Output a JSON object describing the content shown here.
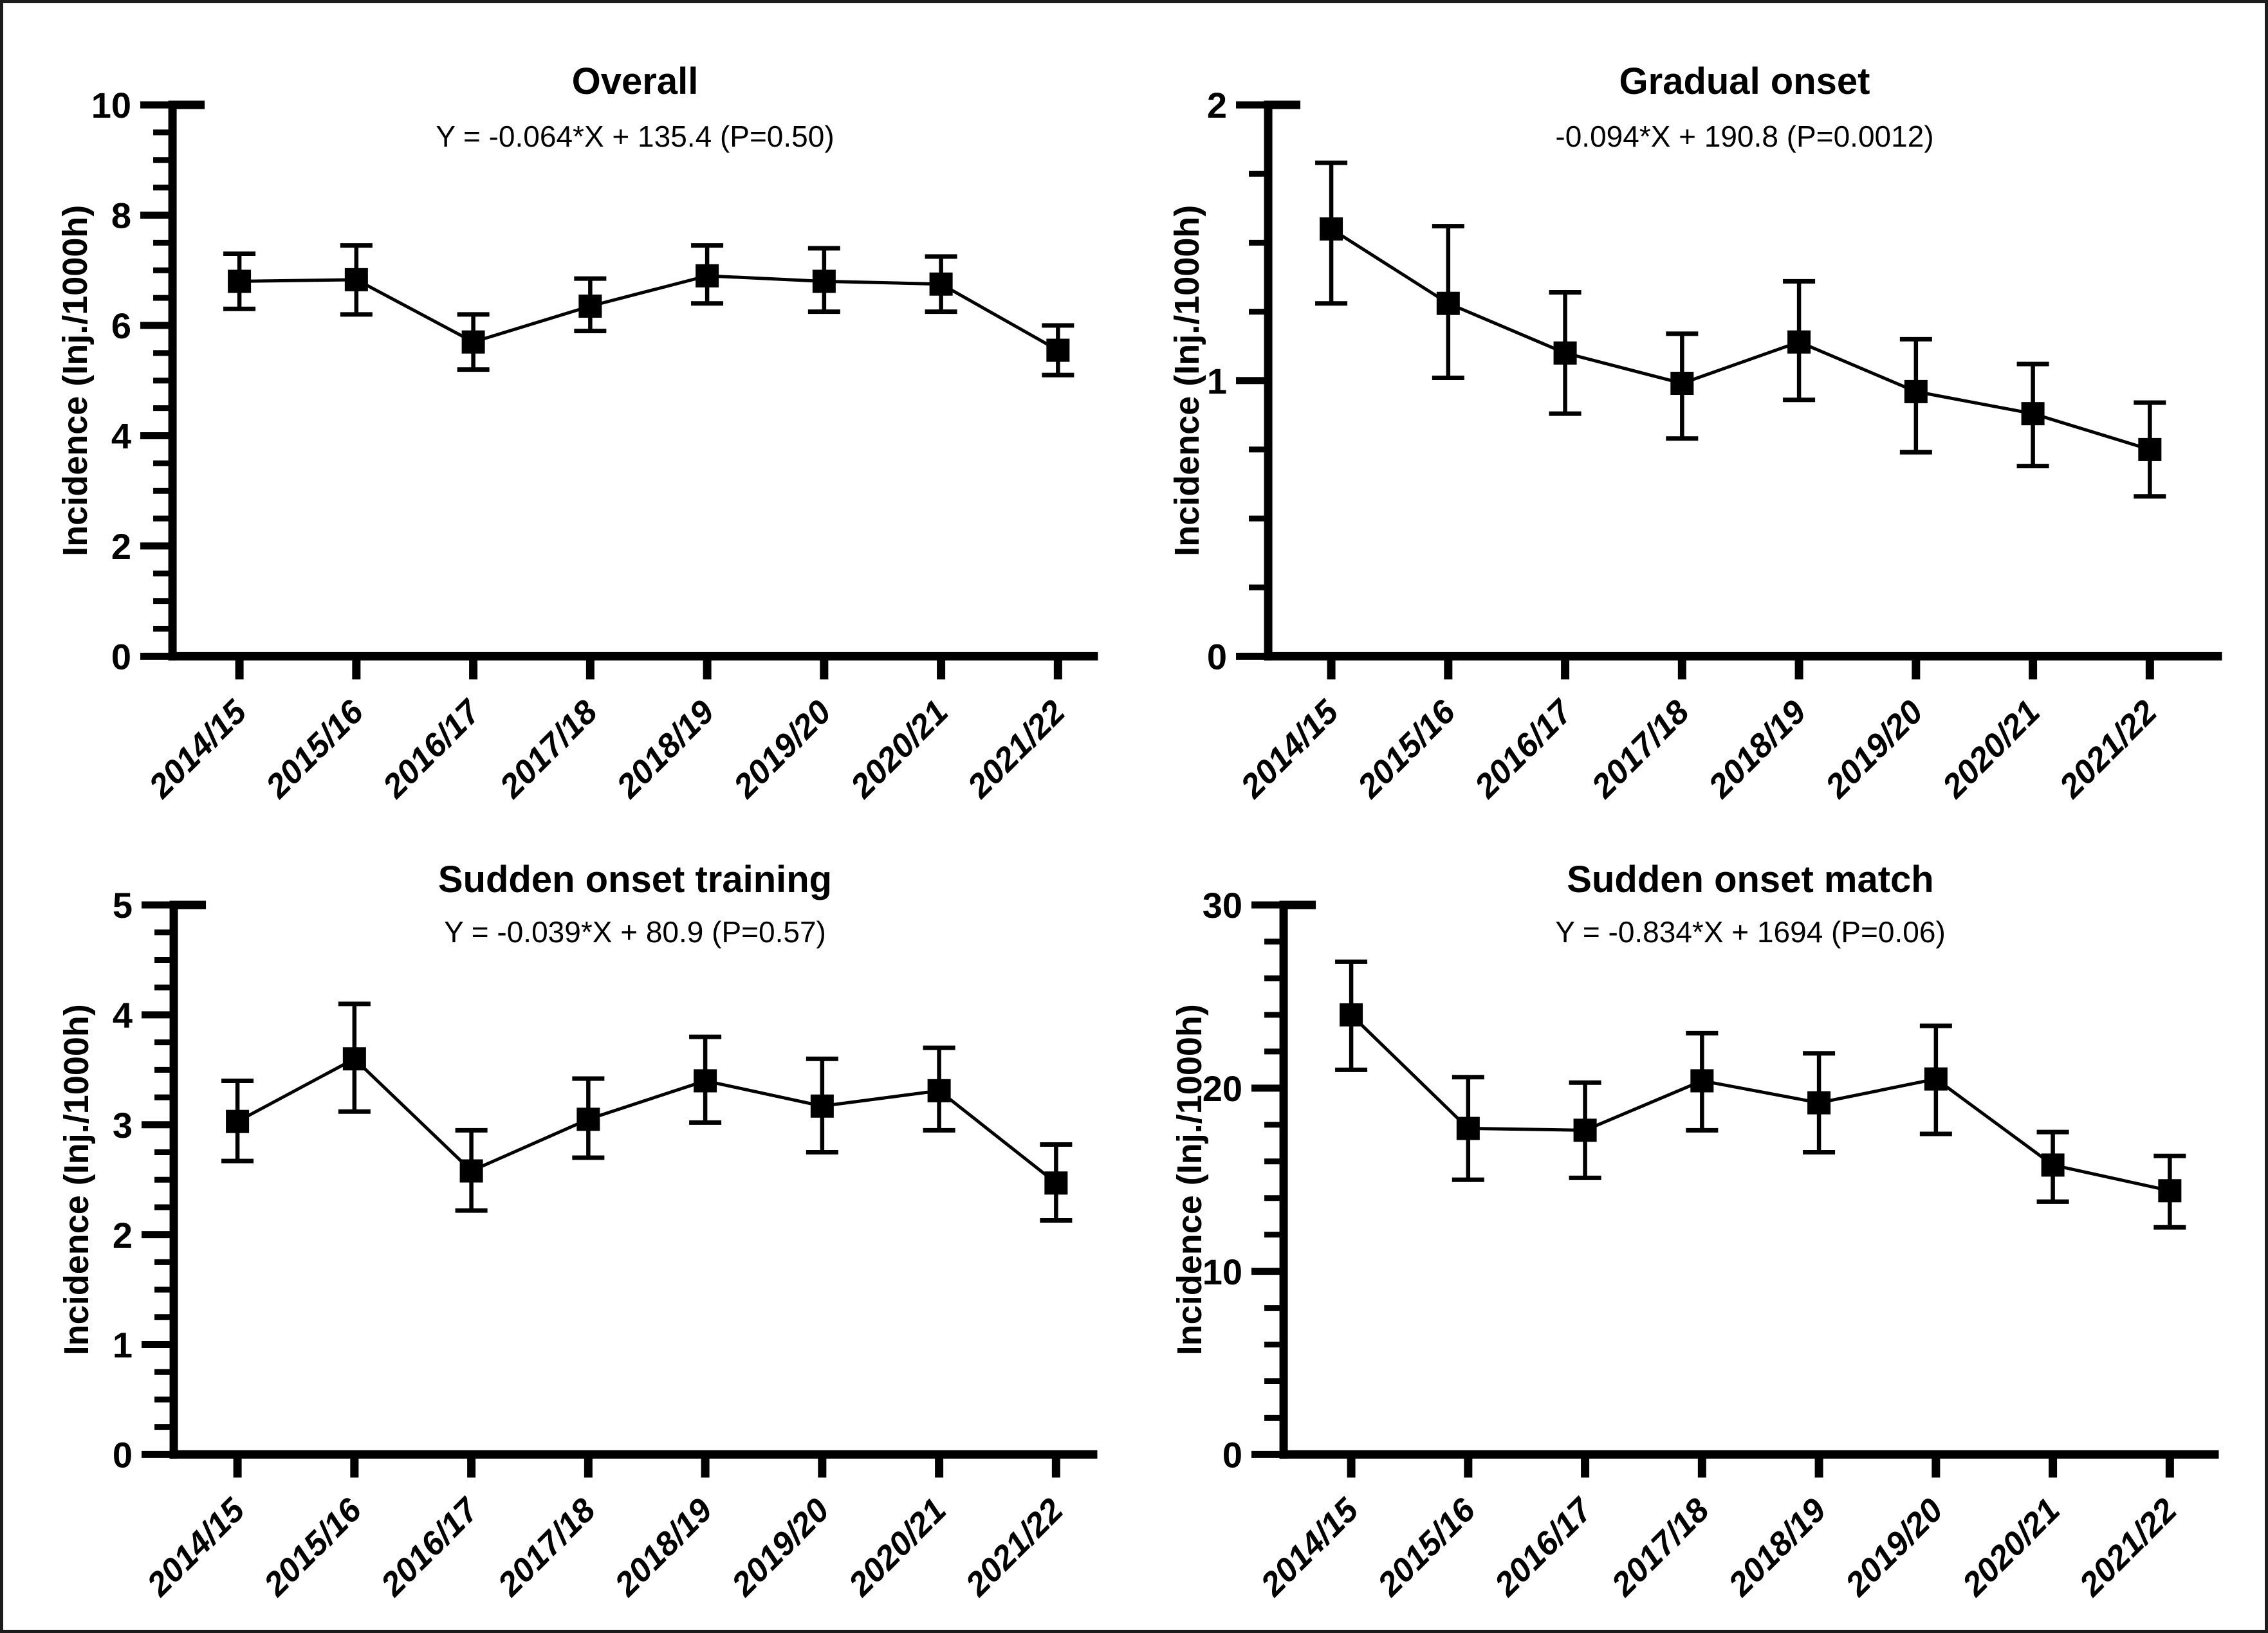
{
  "figure": {
    "background": "#ffffff",
    "border_color": "#1c1c1c",
    "ink_color": "#000000"
  },
  "chart_data": [
    {
      "type": "line",
      "title": "Overall",
      "equation": "Y = -0.064*X + 135.4 (P=0.50)",
      "ylabel": "Incidence (Inj./1000h)",
      "categories": [
        "2014/15",
        "2015/16",
        "2016/17",
        "2017/18",
        "2018/19",
        "2019/20",
        "2020/21",
        "2021/22"
      ],
      "values": [
        6.8,
        6.83,
        5.7,
        6.35,
        6.9,
        6.8,
        6.75,
        5.55
      ],
      "error_low": [
        6.3,
        6.2,
        5.2,
        5.9,
        6.4,
        6.25,
        6.25,
        5.1
      ],
      "error_high": [
        7.3,
        7.45,
        6.2,
        6.85,
        7.45,
        7.4,
        7.25,
        6.0
      ],
      "ylim": [
        0,
        10
      ],
      "y_major_step": 2,
      "y_minor_step": 0.5,
      "marker": "square",
      "error_bars": true,
      "grid": false,
      "legend": "none",
      "tick_label_rotation": -45,
      "color": "#000000"
    },
    {
      "type": "line",
      "title": "Gradual onset",
      "equation": "-0.094*X + 190.8 (P=0.0012)",
      "ylabel": "Incidence (Inj./1000h)",
      "categories": [
        "2014/15",
        "2015/16",
        "2016/17",
        "2017/18",
        "2018/19",
        "2019/20",
        "2020/21",
        "2021/22"
      ],
      "values": [
        1.55,
        1.28,
        1.1,
        0.99,
        1.14,
        0.96,
        0.88,
        0.75
      ],
      "error_low": [
        1.28,
        1.01,
        0.88,
        0.79,
        0.93,
        0.74,
        0.69,
        0.58
      ],
      "error_high": [
        1.79,
        1.56,
        1.32,
        1.17,
        1.36,
        1.15,
        1.06,
        0.92
      ],
      "ylim": [
        0,
        2
      ],
      "y_major_step": 1,
      "y_minor_step": 0.25,
      "marker": "square",
      "error_bars": true,
      "grid": false,
      "legend": "none",
      "tick_label_rotation": -45,
      "color": "#000000"
    },
    {
      "type": "line",
      "title": "Sudden onset training",
      "equation": "Y = -0.039*X + 80.9 (P=0.57)",
      "ylabel": "Incidence (Inj./1000h)",
      "categories": [
        "2014/15",
        "2015/16",
        "2016/17",
        "2017/18",
        "2018/19",
        "2019/20",
        "2020/21",
        "2021/22"
      ],
      "values": [
        3.03,
        3.6,
        2.58,
        3.05,
        3.4,
        3.17,
        3.31,
        2.47
      ],
      "error_low": [
        2.67,
        3.12,
        2.22,
        2.7,
        3.02,
        2.75,
        2.95,
        2.13
      ],
      "error_high": [
        3.4,
        4.1,
        2.95,
        3.42,
        3.8,
        3.6,
        3.7,
        2.82
      ],
      "ylim": [
        0,
        5
      ],
      "y_major_step": 1,
      "y_minor_step": 0.25,
      "marker": "square",
      "error_bars": true,
      "grid": false,
      "legend": "none",
      "tick_label_rotation": -45,
      "color": "#000000"
    },
    {
      "type": "line",
      "title": "Sudden onset match",
      "equation": "Y = -0.834*X + 1694 (P=0.06)",
      "ylabel": "Incidence (Inj./1000h)",
      "categories": [
        "2014/15",
        "2015/16",
        "2016/17",
        "2017/18",
        "2018/19",
        "2019/20",
        "2020/21",
        "2021/22"
      ],
      "values": [
        24.0,
        17.8,
        17.7,
        20.4,
        19.2,
        20.5,
        15.8,
        14.4
      ],
      "error_low": [
        21.0,
        15.0,
        15.1,
        17.7,
        16.5,
        17.5,
        13.8,
        12.4
      ],
      "error_high": [
        26.9,
        20.6,
        20.3,
        23.0,
        21.9,
        23.4,
        17.6,
        16.3
      ],
      "ylim": [
        0,
        30
      ],
      "y_major_step": 10,
      "y_minor_step": 2,
      "marker": "square",
      "error_bars": true,
      "grid": false,
      "legend": "none",
      "tick_label_rotation": -45,
      "color": "#000000"
    }
  ]
}
